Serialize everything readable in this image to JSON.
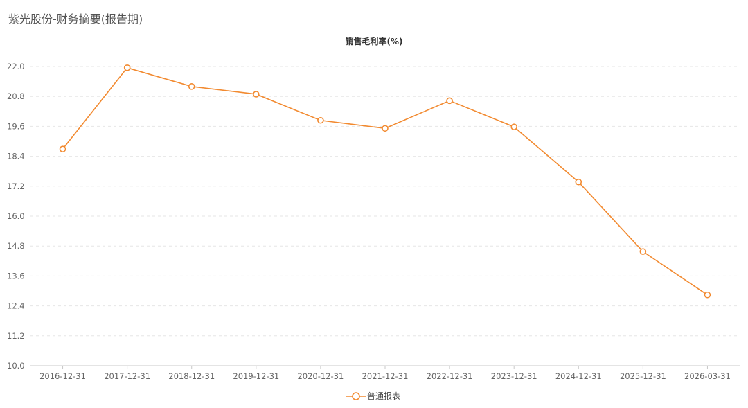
{
  "page": {
    "title": "紫光股份-财务摘要(报告期)"
  },
  "chart_data": {
    "type": "line",
    "title": "销售毛利率(%)",
    "xlabel": "",
    "ylabel": "",
    "ylim": [
      10.0,
      22.0
    ],
    "yticks": [
      "10.0",
      "11.2",
      "12.4",
      "13.6",
      "14.8",
      "16.0",
      "17.2",
      "18.4",
      "19.6",
      "20.8",
      "22.0"
    ],
    "categories": [
      "2016-12-31",
      "2017-12-31",
      "2018-12-31",
      "2019-12-31",
      "2020-12-31",
      "2021-12-31",
      "2022-12-31",
      "2023-12-31",
      "2024-12-31",
      "2025-12-31",
      "2026-03-31"
    ],
    "series": [
      {
        "name": "普通报表",
        "color": "#f28a30",
        "values": [
          18.69,
          21.95,
          21.2,
          20.89,
          19.84,
          19.52,
          20.63,
          19.58,
          17.37,
          14.58,
          12.84
        ]
      }
    ],
    "grid": "horizontal-dashed",
    "legend": "bottom-center"
  }
}
